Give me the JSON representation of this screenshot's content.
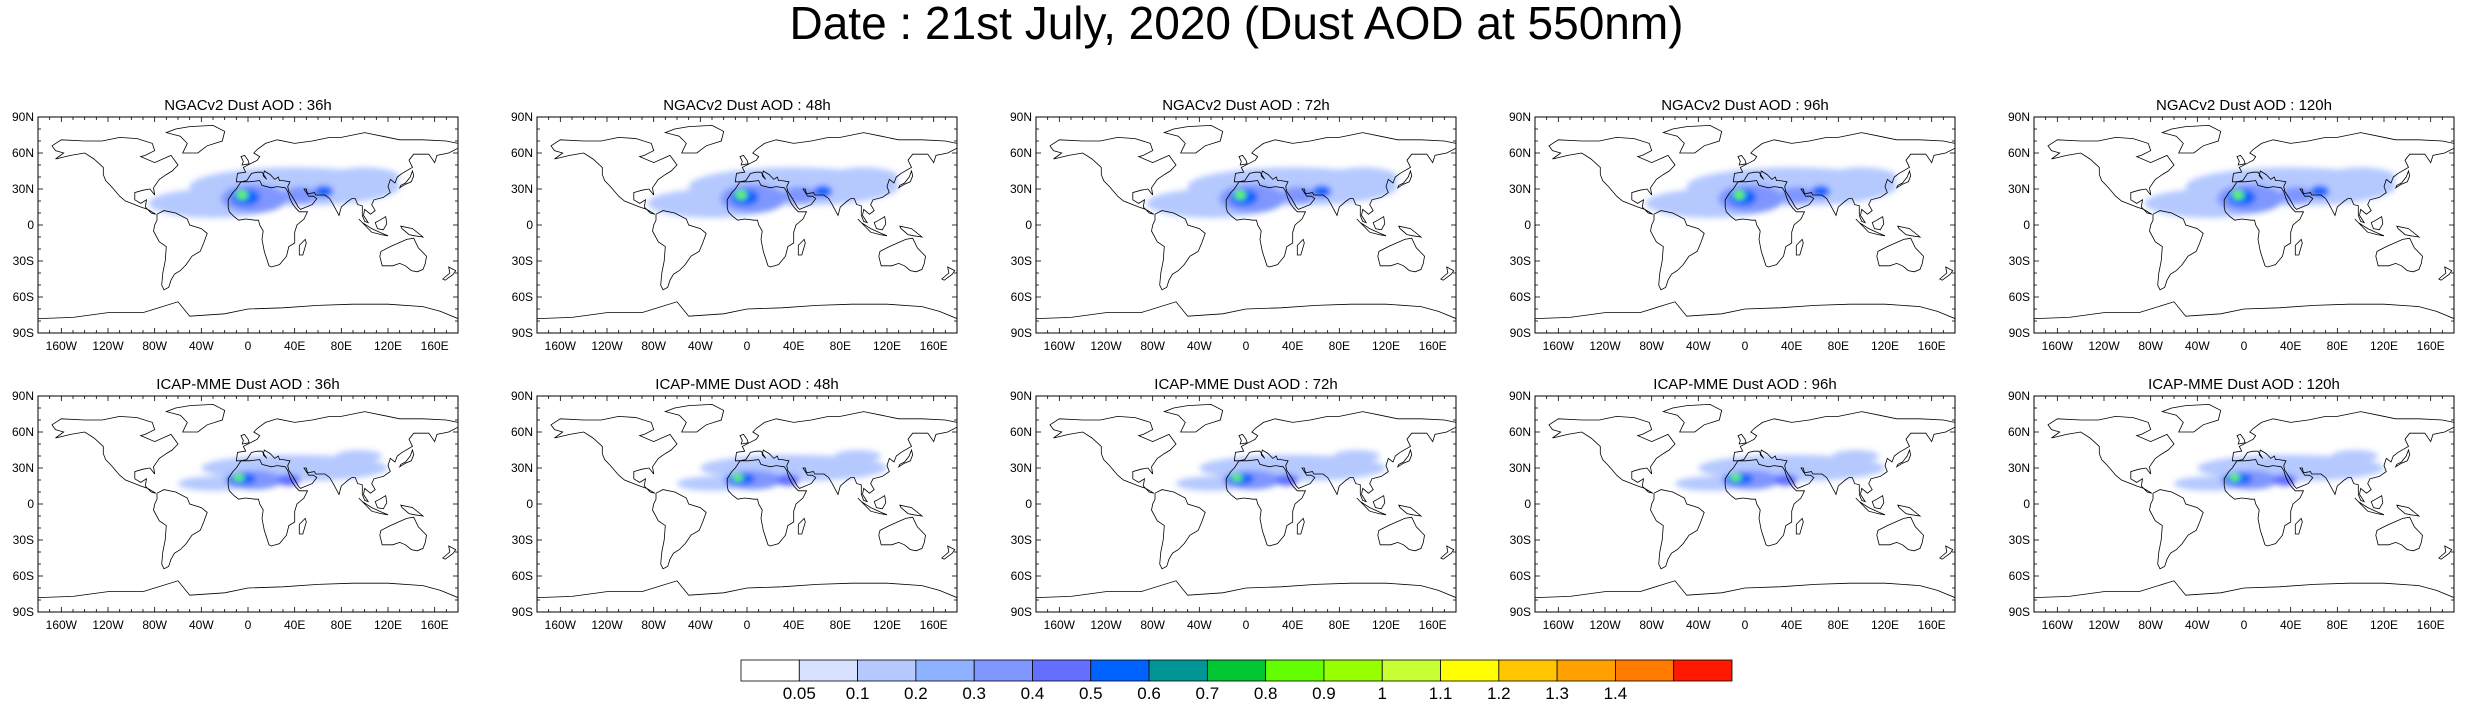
{
  "title": "Date : 21st July, 2020 (Dust AOD at 550nm)",
  "panels": [
    {
      "title": "NGACv2 Dust AOD : 36h",
      "lead_h": 36,
      "model": "NGACv2"
    },
    {
      "title": "NGACv2 Dust AOD : 48h",
      "lead_h": 48,
      "model": "NGACv2"
    },
    {
      "title": "NGACv2 Dust AOD : 72h",
      "lead_h": 72,
      "model": "NGACv2"
    },
    {
      "title": "NGACv2 Dust AOD : 96h",
      "lead_h": 96,
      "model": "NGACv2"
    },
    {
      "title": "NGACv2 Dust AOD : 120h",
      "lead_h": 120,
      "model": "NGACv2"
    },
    {
      "title": "ICAP-MME Dust AOD : 36h",
      "lead_h": 36,
      "model": "ICAP-MME"
    },
    {
      "title": "ICAP-MME Dust AOD : 48h",
      "lead_h": 48,
      "model": "ICAP-MME"
    },
    {
      "title": "ICAP-MME Dust AOD : 72h",
      "lead_h": 72,
      "model": "ICAP-MME"
    },
    {
      "title": "ICAP-MME Dust AOD : 96h",
      "lead_h": 96,
      "model": "ICAP-MME"
    },
    {
      "title": "ICAP-MME Dust AOD : 120h",
      "lead_h": 120,
      "model": "ICAP-MME"
    }
  ],
  "lat_ticks": [
    "90N",
    "60N",
    "30N",
    "0",
    "30S",
    "60S",
    "90S"
  ],
  "lon_ticks": [
    "160W",
    "120W",
    "80W",
    "40W",
    "0",
    "40E",
    "80E",
    "120E",
    "160E"
  ],
  "colorbar": {
    "labels": [
      "0.05",
      "0.1",
      "0.2",
      "0.3",
      "0.4",
      "0.5",
      "0.6",
      "0.7",
      "0.8",
      "0.9",
      "1",
      "1.1",
      "1.2",
      "1.3",
      "1.4"
    ],
    "colors": [
      "#ffffff",
      "#d6e2ff",
      "#b5c9ff",
      "#8eb2ff",
      "#7f96ff",
      "#6370ff",
      "#0063ff",
      "#009696",
      "#00c633",
      "#63ff00",
      "#96ff00",
      "#c6ff33",
      "#ffff00",
      "#ffc600",
      "#ffa000",
      "#ff7c00",
      "#ff1900"
    ]
  },
  "chart_data": {
    "type": "heatmap",
    "variable": "Dust AOD at 550nm",
    "date": "21st July, 2020",
    "xlim": [
      -180,
      180
    ],
    "ylim": [
      -90,
      90
    ],
    "levels": [
      0.05,
      0.1,
      0.2,
      0.3,
      0.4,
      0.5,
      0.6,
      0.7,
      0.8,
      0.9,
      1,
      1.1,
      1.2,
      1.3,
      1.4
    ],
    "plumes": {
      "NGACv2": [
        {
          "lon": -30,
          "lat": 18,
          "rx": 55,
          "ry": 12,
          "aod": 0.12
        },
        {
          "lon": 40,
          "lat": 32,
          "rx": 90,
          "ry": 16,
          "aod": 0.1
        },
        {
          "lon": 5,
          "lat": 22,
          "rx": 28,
          "ry": 12,
          "aod": 0.3
        },
        {
          "lon": -2,
          "lat": 23,
          "rx": 12,
          "ry": 7,
          "aod": 0.55
        },
        {
          "lon": -5,
          "lat": 25,
          "rx": 5,
          "ry": 4,
          "aod": 0.85
        },
        {
          "lon": 45,
          "lat": 25,
          "rx": 14,
          "ry": 7,
          "aod": 0.35
        },
        {
          "lon": 65,
          "lat": 28,
          "rx": 8,
          "ry": 5,
          "aod": 0.5
        },
        {
          "lon": 100,
          "lat": 40,
          "rx": 30,
          "ry": 8,
          "aod": 0.15
        }
      ],
      "ICAP-MME": [
        {
          "lon": -30,
          "lat": 17,
          "rx": 30,
          "ry": 6,
          "aod": 0.12
        },
        {
          "lon": 40,
          "lat": 30,
          "rx": 80,
          "ry": 11,
          "aod": 0.1
        },
        {
          "lon": 5,
          "lat": 20,
          "rx": 25,
          "ry": 8,
          "aod": 0.3
        },
        {
          "lon": -5,
          "lat": 21,
          "rx": 12,
          "ry": 5,
          "aod": 0.55
        },
        {
          "lon": -8,
          "lat": 22,
          "rx": 5,
          "ry": 3,
          "aod": 0.85
        },
        {
          "lon": 35,
          "lat": 20,
          "rx": 10,
          "ry": 5,
          "aod": 0.4
        },
        {
          "lon": 95,
          "lat": 40,
          "rx": 20,
          "ry": 5,
          "aod": 0.12
        }
      ]
    }
  }
}
